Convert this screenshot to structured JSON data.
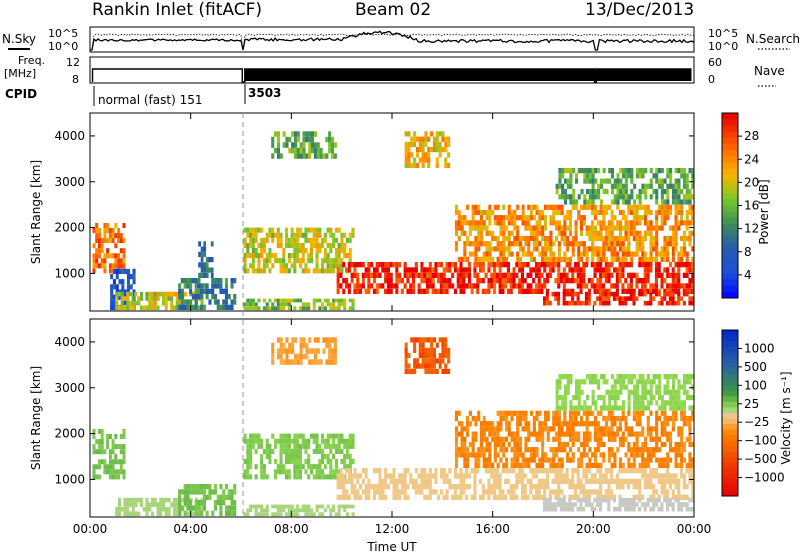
{
  "header": {
    "station": "Rankin Inlet (fitACF)",
    "beam": "Beam 02",
    "date": "13/Dec/2013"
  },
  "status_panel": {
    "left_labels": {
      "nsky": "N.Sky",
      "freq_line1": "Freq.",
      "freq_line2": "[MHz]",
      "cpid": "CPID"
    },
    "right_labels": {
      "nsearch": "N.Search",
      "nave": "Nave"
    },
    "noise_ticks_left": [
      "10^5",
      "10^0"
    ],
    "noise_ticks_right": [
      "10^5",
      "10^0"
    ],
    "freq_ticks": [
      "12",
      "8"
    ],
    "nave_ticks": [
      "60",
      "0"
    ],
    "cpid_segments": [
      {
        "label": "normal (fast) 151",
        "start_hour": 0,
        "end_hour": 6.05
      },
      {
        "label": "3503",
        "start_hour": 6.05,
        "end_hour": 24
      }
    ]
  },
  "time_axis": {
    "xlabel": "Time UT",
    "ticks": [
      "00:00",
      "04:00",
      "08:00",
      "12:00",
      "16:00",
      "20:00",
      "00:00"
    ]
  },
  "colors": {
    "frame": "#000000",
    "mode_change_line": "#999999"
  },
  "chart_data": [
    {
      "type": "heatmap",
      "parameter": "Power",
      "ylabel": "Slant Range [km]",
      "yticks": [
        "1000",
        "2000",
        "3000",
        "4000"
      ],
      "xlim_hours": [
        0,
        24
      ],
      "ylim_km": [
        180,
        4500
      ],
      "colorbar": {
        "label": "Power [dB]",
        "ticks": [
          "4",
          "8",
          "12",
          "16",
          "20",
          "24",
          "28"
        ],
        "range": [
          0,
          30
        ]
      },
      "echo_regions": [
        {
          "t0": 0.1,
          "t1": 1.4,
          "r0": 1000,
          "r1": 2100,
          "value": 24
        },
        {
          "t0": 0.8,
          "t1": 1.8,
          "r0": 200,
          "r1": 1100,
          "value": 6
        },
        {
          "t0": 1.0,
          "t1": 4.5,
          "r0": 200,
          "r1": 600,
          "value": 18
        },
        {
          "t0": 3.5,
          "t1": 5.8,
          "r0": 200,
          "r1": 900,
          "value": 10
        },
        {
          "t0": 4.3,
          "t1": 4.9,
          "r0": 900,
          "r1": 1700,
          "value": 10
        },
        {
          "t0": 6.1,
          "t1": 10.5,
          "r0": 1000,
          "r1": 2000,
          "value": 18
        },
        {
          "t0": 6.1,
          "t1": 10.5,
          "r0": 200,
          "r1": 450,
          "value": 16
        },
        {
          "t0": 7.2,
          "t1": 9.8,
          "r0": 3500,
          "r1": 4100,
          "value": 14
        },
        {
          "t0": 9.8,
          "t1": 24,
          "r0": 550,
          "r1": 1250,
          "value": 28
        },
        {
          "t0": 12.5,
          "t1": 14.3,
          "r0": 3300,
          "r1": 4100,
          "value": 20
        },
        {
          "t0": 14.5,
          "t1": 24,
          "r0": 1250,
          "r1": 2500,
          "value": 22
        },
        {
          "t0": 18.0,
          "t1": 24,
          "r0": 300,
          "r1": 600,
          "value": 28
        },
        {
          "t0": 18.5,
          "t1": 24,
          "r0": 2500,
          "r1": 3300,
          "value": 14
        }
      ]
    },
    {
      "type": "heatmap",
      "parameter": "Velocity",
      "ylabel": "Slant Range [km]",
      "yticks": [
        "1000",
        "2000",
        "3000",
        "4000"
      ],
      "xlim_hours": [
        0,
        24
      ],
      "ylim_km": [
        180,
        4500
      ],
      "colorbar": {
        "label": "Velocity [m s⁻¹]",
        "ticks": [
          "1000",
          "500",
          "100",
          "25",
          "−25",
          "−100",
          "−500",
          "−1000"
        ],
        "range": [
          -1200,
          1200
        ]
      },
      "echo_regions": [
        {
          "t0": 0.1,
          "t1": 1.4,
          "r0": 1000,
          "r1": 2100,
          "value": 150
        },
        {
          "t0": 1.0,
          "t1": 4.5,
          "r0": 200,
          "r1": 600,
          "value": 40
        },
        {
          "t0": 3.5,
          "t1": 5.8,
          "r0": 200,
          "r1": 900,
          "value": 150
        },
        {
          "t0": 6.1,
          "t1": 10.5,
          "r0": 1000,
          "r1": 2000,
          "value": 120
        },
        {
          "t0": 6.1,
          "t1": 10.5,
          "r0": 200,
          "r1": 450,
          "value": 40
        },
        {
          "t0": 7.2,
          "t1": 9.8,
          "r0": 3500,
          "r1": 4100,
          "value": -200
        },
        {
          "t0": 9.8,
          "t1": 24,
          "r0": 550,
          "r1": 1250,
          "value": -50
        },
        {
          "t0": 12.5,
          "t1": 14.3,
          "r0": 3300,
          "r1": 4100,
          "value": -600
        },
        {
          "t0": 14.5,
          "t1": 24,
          "r0": 1250,
          "r1": 2500,
          "value": -300
        },
        {
          "t0": 18.0,
          "t1": 24,
          "r0": 300,
          "r1": 600,
          "value": 0
        },
        {
          "t0": 18.5,
          "t1": 24,
          "r0": 2500,
          "r1": 3300,
          "value": 80
        }
      ]
    }
  ]
}
